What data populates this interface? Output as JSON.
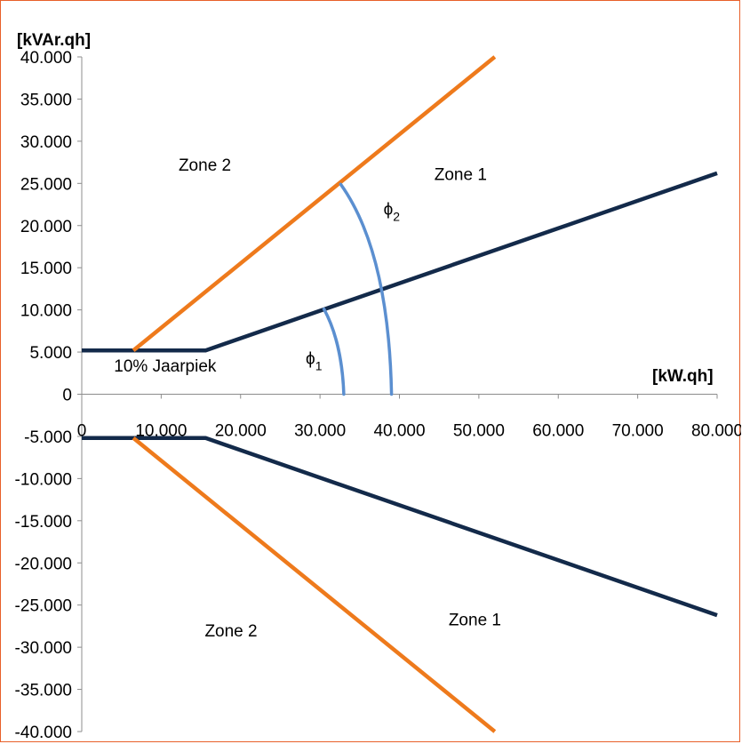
{
  "chart_data": {
    "type": "line",
    "title": "",
    "xlabel": "[kW.qh]",
    "ylabel": "[kVAr.qh]",
    "xlim": [
      0,
      80000
    ],
    "ylim": [
      -40000,
      40000
    ],
    "x_ticks": [
      0,
      10000,
      20000,
      30000,
      40000,
      50000,
      60000,
      70000,
      80000
    ],
    "x_tick_labels": [
      "0",
      "10.000",
      "20.000",
      "30.000",
      "40.000",
      "50.000",
      "60.000",
      "70.000",
      "80.000"
    ],
    "y_ticks": [
      40000,
      35000,
      30000,
      25000,
      20000,
      15000,
      10000,
      5000,
      0,
      -5000,
      -10000,
      -15000,
      -20000,
      -25000,
      -30000,
      -35000,
      -40000
    ],
    "y_tick_labels": [
      "40.000",
      "35.000",
      "30.000",
      "25.000",
      "20.000",
      "15.000",
      "10.000",
      "5.000",
      "0",
      "-5.000",
      "-10.000",
      "-15.000",
      "-20.000",
      "-25.000",
      "-30.000",
      "-35.000",
      "-40.000"
    ],
    "grid": false,
    "legend": "none",
    "series": [
      {
        "color": "#132a4a",
        "points": [
          [
            0,
            5200
          ],
          [
            15600,
            5200
          ],
          [
            80000,
            26200
          ]
        ]
      },
      {
        "color": "#132a4a",
        "points": [
          [
            0,
            -5200
          ],
          [
            15600,
            -5200
          ],
          [
            80000,
            -26200
          ]
        ]
      },
      {
        "color": "#ee7a1c",
        "points": [
          [
            6500,
            5200
          ],
          [
            52000,
            40000
          ]
        ]
      },
      {
        "color": "#ee7a1c",
        "points": [
          [
            6500,
            -5200
          ],
          [
            52000,
            -40000
          ]
        ]
      }
    ],
    "arcs": [
      {
        "color": "#5b8fd0",
        "points": [
          [
            30500,
            10100
          ],
          [
            32400,
            6800
          ],
          [
            32900,
            2700
          ],
          [
            33000,
            0
          ]
        ]
      },
      {
        "color": "#5b8fd0",
        "points": [
          [
            32600,
            24900
          ],
          [
            37300,
            18700
          ],
          [
            38800,
            9300
          ],
          [
            39000,
            0
          ]
        ]
      }
    ],
    "annotations": [
      {
        "text": "Zone 2",
        "x": 15500,
        "y": 26500
      },
      {
        "text": "Zone 1",
        "x": 47700,
        "y": 25400
      },
      {
        "text": "10% Jaarpiek",
        "x": 10500,
        "y": 2700
      },
      {
        "text": "Zone 2",
        "x": 18800,
        "y": -28700
      },
      {
        "text": "Zone 1",
        "x": 49500,
        "y": -27400
      }
    ],
    "phi_labels": [
      {
        "sub": "1",
        "x": 28200,
        "y": 3600
      },
      {
        "sub": "2",
        "x": 38000,
        "y": 21300
      }
    ]
  }
}
